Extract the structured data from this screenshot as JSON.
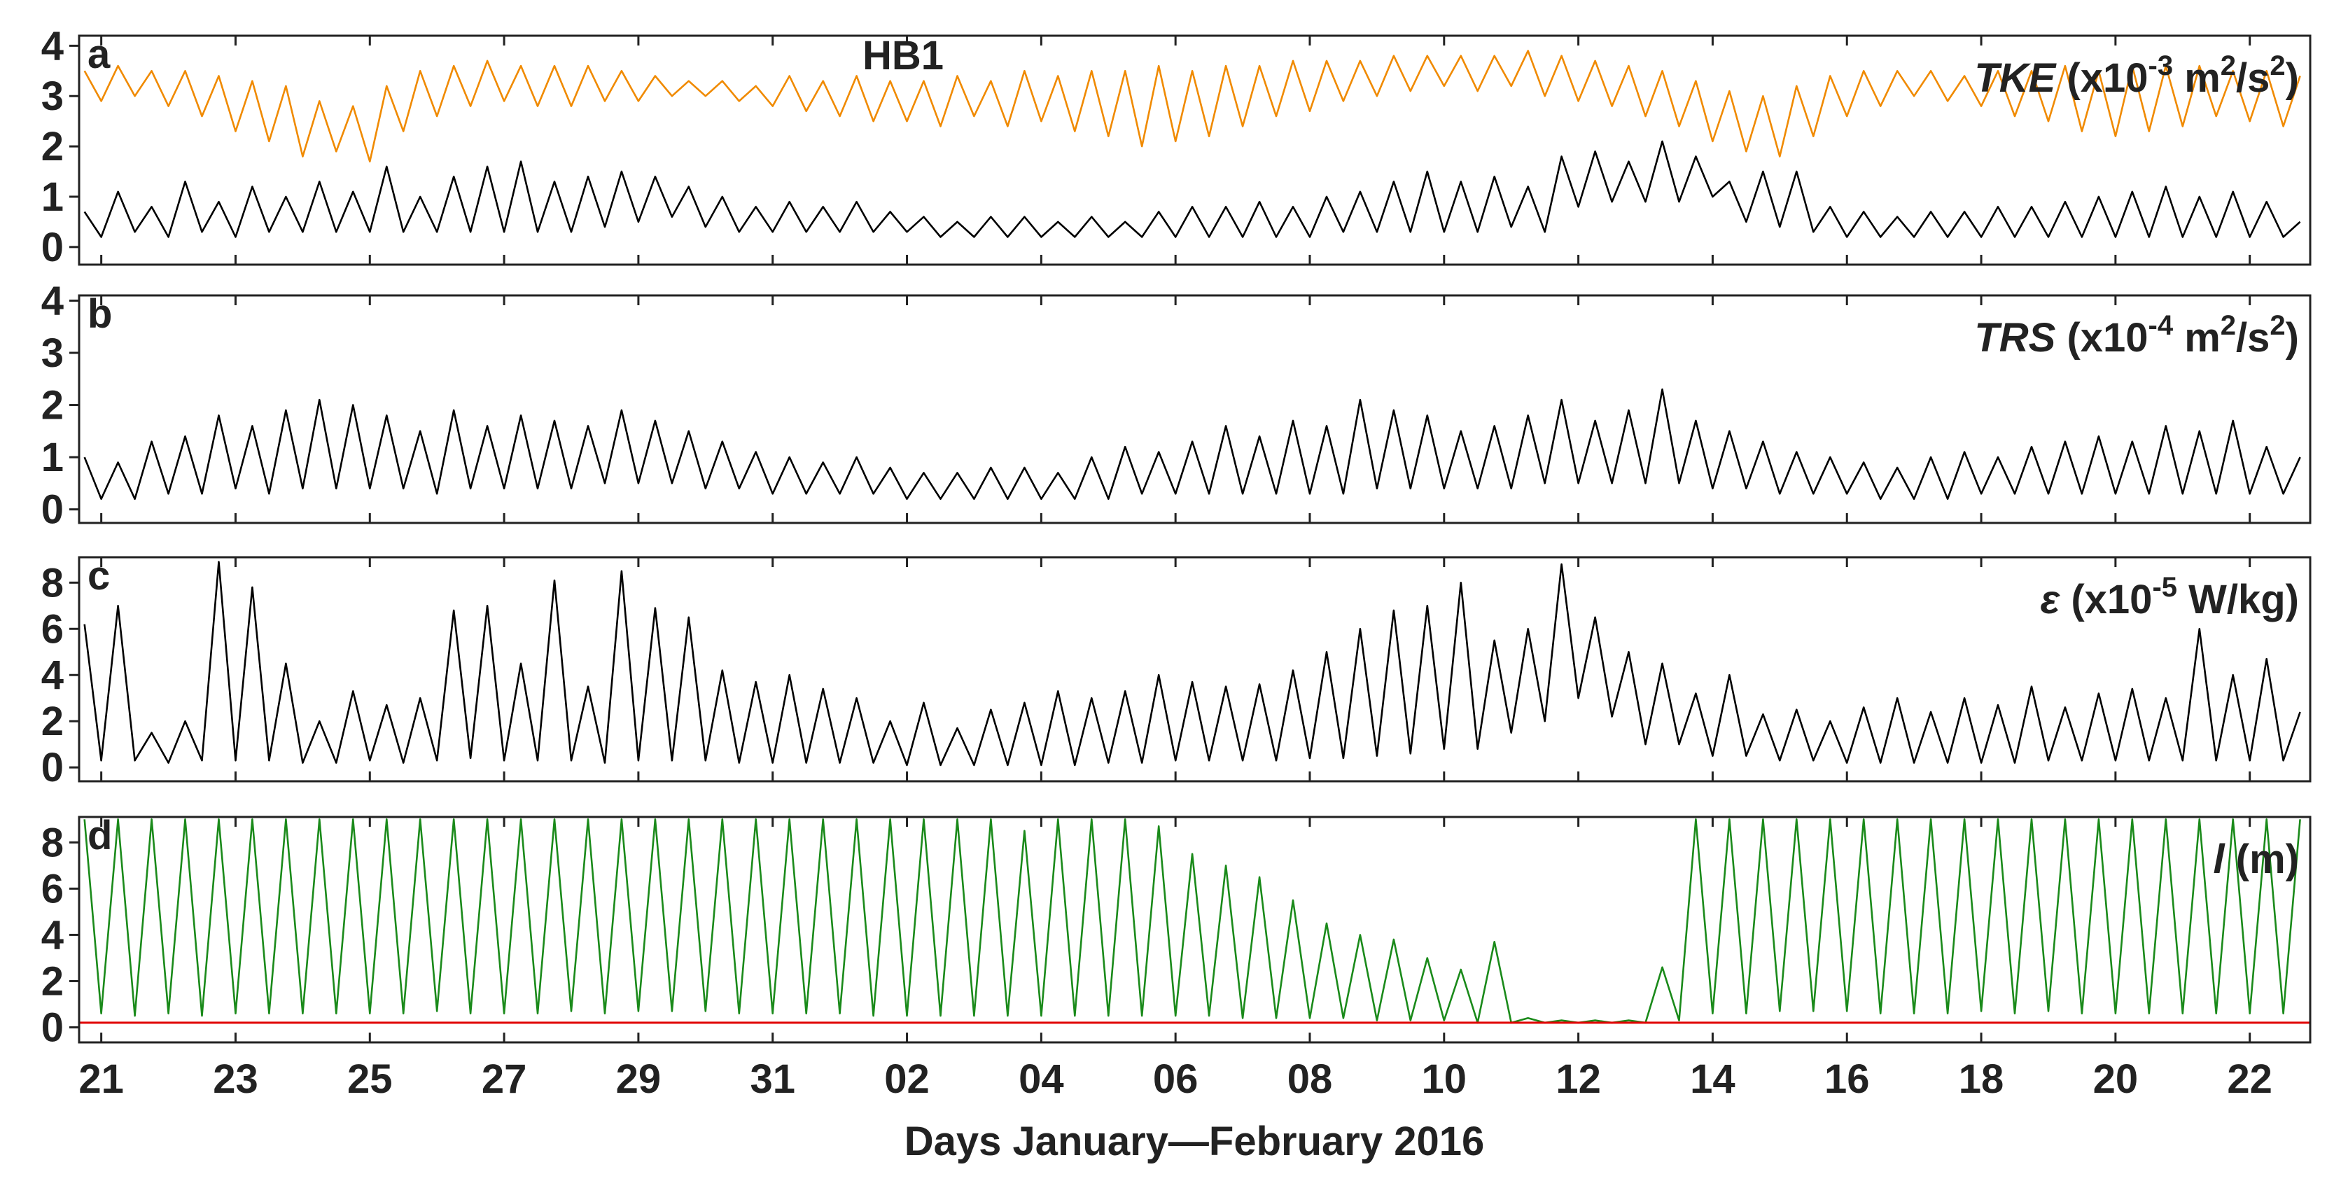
{
  "chart_data": {
    "type": "line",
    "xlabel": "Days January—February 2016",
    "xlim": [
      20.67,
      53.9
    ],
    "xticks": [
      21,
      23,
      25,
      27,
      29,
      31,
      {
        "value": 33,
        "label": "02"
      },
      {
        "value": 35,
        "label": "04"
      },
      {
        "value": 37,
        "label": "06"
      },
      {
        "value": 39,
        "label": "08"
      },
      {
        "value": 41,
        "label": "10"
      },
      {
        "value": 43,
        "label": "12"
      },
      {
        "value": 45,
        "label": "14"
      },
      {
        "value": 47,
        "label": "16"
      },
      {
        "value": 49,
        "label": "18"
      },
      {
        "value": 51,
        "label": "20"
      },
      {
        "value": 53,
        "label": "22"
      }
    ],
    "x": [
      20.75,
      21,
      21.25,
      21.5,
      21.75,
      22,
      22.25,
      22.5,
      22.75,
      23,
      23.25,
      23.5,
      23.75,
      24,
      24.25,
      24.5,
      24.75,
      25,
      25.25,
      25.5,
      25.75,
      26,
      26.25,
      26.5,
      26.75,
      27,
      27.25,
      27.5,
      27.75,
      28,
      28.25,
      28.5,
      28.75,
      29,
      29.25,
      29.5,
      29.75,
      30,
      30.25,
      30.5,
      30.75,
      31,
      31.25,
      31.5,
      31.75,
      32,
      32.25,
      32.5,
      32.75,
      33,
      33.25,
      33.5,
      33.75,
      34,
      34.25,
      34.5,
      34.75,
      35,
      35.25,
      35.5,
      35.75,
      36,
      36.25,
      36.5,
      36.75,
      37,
      37.25,
      37.5,
      37.75,
      38,
      38.25,
      38.5,
      38.75,
      39,
      39.25,
      39.5,
      39.75,
      40,
      40.25,
      40.5,
      40.75,
      41,
      41.25,
      41.5,
      41.75,
      42,
      42.25,
      42.5,
      42.75,
      43,
      43.25,
      43.5,
      43.75,
      44,
      44.25,
      44.5,
      44.75,
      45,
      45.25,
      45.5,
      45.75,
      46,
      46.25,
      46.5,
      46.75,
      47,
      47.25,
      47.5,
      47.75,
      48,
      48.25,
      48.5,
      48.75,
      49,
      49.25,
      49.5,
      49.75,
      50,
      50.25,
      50.5,
      50.75,
      51,
      51.25,
      51.5,
      51.75,
      52,
      52.25,
      52.5,
      52.75,
      53,
      53.25,
      53.5,
      53.75
    ],
    "panels": [
      {
        "letter": "a",
        "annotation": "HB1",
        "ylim": [
          -0.35,
          4.2
        ],
        "yticks": [
          0,
          1,
          2,
          3,
          4
        ],
        "label": [
          {
            "text": "TKE",
            "style": "italic"
          },
          {
            "text": " (x10"
          },
          {
            "text": "-3",
            "style": "sup"
          },
          {
            "text": " m"
          },
          {
            "text": "2",
            "style": "sup"
          },
          {
            "text": "/s"
          },
          {
            "text": "2",
            "style": "sup"
          },
          {
            "text": ")"
          }
        ],
        "series": [
          {
            "color": "#f08a00",
            "values": [
              3.5,
              2.9,
              3.6,
              3.0,
              3.5,
              2.8,
              3.5,
              2.6,
              3.4,
              2.3,
              3.3,
              2.1,
              3.2,
              1.8,
              2.9,
              1.9,
              2.8,
              1.7,
              3.2,
              2.3,
              3.5,
              2.6,
              3.6,
              2.8,
              3.7,
              2.9,
              3.6,
              2.8,
              3.6,
              2.8,
              3.6,
              2.9,
              3.5,
              2.9,
              3.4,
              3.0,
              3.3,
              3.0,
              3.3,
              2.9,
              3.2,
              2.8,
              3.4,
              2.7,
              3.3,
              2.6,
              3.4,
              2.5,
              3.3,
              2.5,
              3.3,
              2.4,
              3.4,
              2.6,
              3.3,
              2.4,
              3.5,
              2.5,
              3.4,
              2.3,
              3.5,
              2.2,
              3.5,
              2.0,
              3.6,
              2.1,
              3.5,
              2.2,
              3.6,
              2.4,
              3.6,
              2.6,
              3.7,
              2.7,
              3.7,
              2.9,
              3.7,
              3.0,
              3.8,
              3.1,
              3.8,
              3.2,
              3.8,
              3.1,
              3.8,
              3.2,
              3.9,
              3.0,
              3.8,
              2.9,
              3.7,
              2.8,
              3.6,
              2.6,
              3.5,
              2.4,
              3.3,
              2.1,
              3.1,
              1.9,
              3.0,
              1.8,
              3.2,
              2.2,
              3.4,
              2.6,
              3.5,
              2.8,
              3.5,
              3.0,
              3.5,
              2.9,
              3.4,
              2.8,
              3.5,
              2.6,
              3.5,
              2.5,
              3.6,
              2.3,
              3.5,
              2.2,
              3.6,
              2.3,
              3.6,
              2.4,
              3.6,
              2.6,
              3.5,
              2.5,
              3.5,
              2.4,
              3.4
            ]
          },
          {
            "color": "#000000",
            "values": [
              0.7,
              0.2,
              1.1,
              0.3,
              0.8,
              0.2,
              1.3,
              0.3,
              0.9,
              0.2,
              1.2,
              0.3,
              1.0,
              0.3,
              1.3,
              0.3,
              1.1,
              0.3,
              1.6,
              0.3,
              1.0,
              0.3,
              1.4,
              0.3,
              1.6,
              0.3,
              1.7,
              0.3,
              1.3,
              0.3,
              1.4,
              0.4,
              1.5,
              0.5,
              1.4,
              0.6,
              1.2,
              0.4,
              1.0,
              0.3,
              0.8,
              0.3,
              0.9,
              0.3,
              0.8,
              0.3,
              0.9,
              0.3,
              0.7,
              0.3,
              0.6,
              0.2,
              0.5,
              0.2,
              0.6,
              0.2,
              0.6,
              0.2,
              0.5,
              0.2,
              0.6,
              0.2,
              0.5,
              0.2,
              0.7,
              0.2,
              0.8,
              0.2,
              0.8,
              0.2,
              0.9,
              0.2,
              0.8,
              0.2,
              1.0,
              0.3,
              1.1,
              0.3,
              1.3,
              0.3,
              1.5,
              0.3,
              1.3,
              0.3,
              1.4,
              0.4,
              1.2,
              0.3,
              1.8,
              0.8,
              1.9,
              0.9,
              1.7,
              0.9,
              2.1,
              0.9,
              1.8,
              1.0,
              1.3,
              0.5,
              1.5,
              0.4,
              1.5,
              0.3,
              0.8,
              0.2,
              0.7,
              0.2,
              0.6,
              0.2,
              0.7,
              0.2,
              0.7,
              0.2,
              0.8,
              0.2,
              0.8,
              0.2,
              0.9,
              0.2,
              1.0,
              0.2,
              1.1,
              0.2,
              1.2,
              0.2,
              1.0,
              0.2,
              1.1,
              0.2,
              0.9,
              0.2,
              0.5
            ]
          }
        ]
      },
      {
        "letter": "b",
        "ylim": [
          -0.26,
          4.1
        ],
        "yticks": [
          0,
          1,
          2,
          3,
          4
        ],
        "label": [
          {
            "text": "TRS",
            "style": "italic"
          },
          {
            "text": " (x10"
          },
          {
            "text": "-4",
            "style": "sup"
          },
          {
            "text": " m"
          },
          {
            "text": "2",
            "style": "sup"
          },
          {
            "text": "/s"
          },
          {
            "text": "2",
            "style": "sup"
          },
          {
            "text": ")"
          }
        ],
        "series": [
          {
            "color": "#000000",
            "values": [
              1.0,
              0.2,
              0.9,
              0.2,
              1.3,
              0.3,
              1.4,
              0.3,
              1.8,
              0.4,
              1.6,
              0.3,
              1.9,
              0.4,
              2.1,
              0.4,
              2.0,
              0.4,
              1.8,
              0.4,
              1.5,
              0.3,
              1.9,
              0.4,
              1.6,
              0.4,
              1.8,
              0.4,
              1.7,
              0.4,
              1.6,
              0.5,
              1.9,
              0.5,
              1.7,
              0.5,
              1.5,
              0.4,
              1.3,
              0.4,
              1.1,
              0.3,
              1.0,
              0.3,
              0.9,
              0.3,
              1.0,
              0.3,
              0.8,
              0.2,
              0.7,
              0.2,
              0.7,
              0.2,
              0.8,
              0.2,
              0.8,
              0.2,
              0.7,
              0.2,
              1.0,
              0.2,
              1.2,
              0.3,
              1.1,
              0.3,
              1.3,
              0.3,
              1.6,
              0.3,
              1.4,
              0.3,
              1.7,
              0.3,
              1.6,
              0.3,
              2.1,
              0.4,
              1.9,
              0.4,
              1.8,
              0.4,
              1.5,
              0.4,
              1.6,
              0.4,
              1.8,
              0.5,
              2.1,
              0.5,
              1.7,
              0.5,
              1.9,
              0.5,
              2.3,
              0.5,
              1.7,
              0.4,
              1.5,
              0.4,
              1.3,
              0.3,
              1.1,
              0.3,
              1.0,
              0.3,
              0.9,
              0.2,
              0.8,
              0.2,
              1.0,
              0.2,
              1.1,
              0.3,
              1.0,
              0.3,
              1.2,
              0.3,
              1.3,
              0.3,
              1.4,
              0.3,
              1.3,
              0.3,
              1.6,
              0.3,
              1.5,
              0.3,
              1.7,
              0.3,
              1.2,
              0.3,
              1.0
            ]
          }
        ]
      },
      {
        "letter": "c",
        "ylim": [
          -0.6,
          9.1
        ],
        "yticks": [
          0,
          2,
          4,
          6,
          8
        ],
        "label": [
          {
            "text": "ε",
            "style": "italic"
          },
          {
            "text": " (x10"
          },
          {
            "text": "-5",
            "style": "sup"
          },
          {
            "text": " W/kg)"
          }
        ],
        "series": [
          {
            "color": "#000000",
            "values": [
              6.2,
              0.3,
              7.0,
              0.3,
              1.5,
              0.2,
              2.0,
              0.3,
              8.9,
              0.3,
              7.8,
              0.3,
              4.5,
              0.2,
              2.0,
              0.2,
              3.3,
              0.3,
              2.7,
              0.2,
              3.0,
              0.3,
              6.8,
              0.4,
              7.0,
              0.3,
              4.5,
              0.3,
              8.1,
              0.3,
              3.5,
              0.2,
              8.5,
              0.3,
              6.9,
              0.3,
              6.5,
              0.3,
              4.2,
              0.2,
              3.7,
              0.2,
              4.0,
              0.2,
              3.4,
              0.2,
              3.0,
              0.2,
              2.0,
              0.1,
              2.8,
              0.1,
              1.7,
              0.1,
              2.5,
              0.1,
              2.8,
              0.1,
              3.3,
              0.1,
              3.0,
              0.2,
              3.3,
              0.2,
              4.0,
              0.3,
              3.7,
              0.3,
              3.5,
              0.3,
              3.6,
              0.3,
              4.2,
              0.4,
              5.0,
              0.4,
              6.0,
              0.5,
              6.8,
              0.6,
              7.0,
              0.8,
              8.0,
              0.8,
              5.5,
              1.5,
              6.0,
              2.0,
              8.8,
              3.0,
              6.5,
              2.2,
              5.0,
              1.0,
              4.5,
              1.0,
              3.2,
              0.5,
              4.0,
              0.5,
              2.3,
              0.3,
              2.5,
              0.3,
              2.0,
              0.2,
              2.6,
              0.2,
              3.0,
              0.2,
              2.4,
              0.2,
              3.0,
              0.2,
              2.7,
              0.2,
              3.5,
              0.3,
              2.6,
              0.3,
              3.2,
              0.3,
              3.4,
              0.3,
              3.0,
              0.3,
              6.0,
              0.3,
              4.0,
              0.3,
              4.7,
              0.3,
              2.4
            ]
          }
        ]
      },
      {
        "letter": "d",
        "ylim": [
          -0.65,
          9.1
        ],
        "yticks": [
          0,
          2,
          4,
          6,
          8
        ],
        "label": [
          {
            "text": "l",
            "style": "italic"
          },
          {
            "text": " (m)"
          }
        ],
        "hline": {
          "value": 0.2,
          "color": "#e00000"
        },
        "series": [
          {
            "color": "#1a8a1a",
            "values": [
              9,
              0.6,
              9,
              0.5,
              9,
              0.6,
              9,
              0.5,
              9,
              0.6,
              9,
              0.6,
              9,
              0.6,
              9,
              0.6,
              9,
              0.6,
              9,
              0.6,
              9,
              0.7,
              9,
              0.6,
              9,
              0.6,
              9,
              0.6,
              9,
              0.7,
              9,
              0.6,
              9,
              0.7,
              9,
              0.7,
              9,
              0.7,
              9,
              0.6,
              9,
              0.6,
              9,
              0.6,
              9,
              0.6,
              9,
              0.5,
              9,
              0.5,
              9,
              0.5,
              9,
              0.5,
              9,
              0.5,
              8.5,
              0.5,
              9,
              0.5,
              9,
              0.5,
              9,
              0.5,
              8.7,
              0.5,
              7.5,
              0.5,
              7.0,
              0.4,
              6.5,
              0.4,
              5.5,
              0.4,
              4.5,
              0.4,
              4.0,
              0.3,
              3.8,
              0.3,
              3.0,
              0.3,
              2.5,
              0.2,
              3.7,
              0.2,
              0.4,
              0.2,
              0.3,
              0.2,
              0.3,
              0.2,
              0.3,
              0.2,
              2.6,
              0.3,
              9,
              0.6,
              9,
              0.6,
              9,
              0.7,
              9,
              0.7,
              9,
              0.7,
              9,
              0.6,
              9,
              0.6,
              9,
              0.6,
              9,
              0.7,
              9,
              0.6,
              9,
              0.7,
              9,
              0.6,
              9,
              0.6,
              9,
              0.6,
              9,
              0.6,
              9,
              0.6,
              9,
              0.6,
              9,
              0.6,
              9
            ]
          }
        ]
      }
    ]
  }
}
